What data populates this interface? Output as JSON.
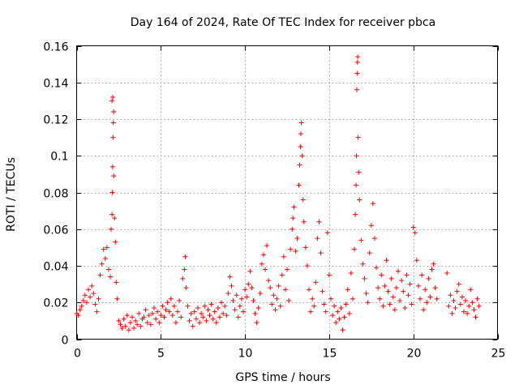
{
  "chart_data": {
    "type": "scatter",
    "title": "Day 164 of 2024, Rate Of TEC Index for receiver pbca",
    "xlabel": "GPS time / hours",
    "ylabel": "ROTI / TECUs",
    "xlim": [
      0,
      25
    ],
    "ylim": [
      0,
      0.16
    ],
    "x_ticks": [
      "0",
      "5",
      "10",
      "15",
      "20",
      "25"
    ],
    "y_ticks": [
      "0",
      "0.02",
      "0.04",
      "0.06",
      "0.08",
      "0.1",
      "0.12",
      "0.14",
      "0.16"
    ],
    "x_tick_values": [
      0,
      5,
      10,
      15,
      20,
      25
    ],
    "y_tick_values": [
      0,
      0.02,
      0.04,
      0.06,
      0.08,
      0.1,
      0.12,
      0.14,
      0.16
    ],
    "grid": true,
    "marker": "+",
    "color": "#ff0000",
    "series": [
      {
        "name": "ROTI",
        "points": [
          [
            0.0,
            0.014
          ],
          [
            0.1,
            0.013
          ],
          [
            0.2,
            0.016
          ],
          [
            0.3,
            0.018
          ],
          [
            0.4,
            0.021
          ],
          [
            0.5,
            0.024
          ],
          [
            0.6,
            0.02
          ],
          [
            0.7,
            0.027
          ],
          [
            0.8,
            0.023
          ],
          [
            0.9,
            0.029
          ],
          [
            1.0,
            0.025
          ],
          [
            1.1,
            0.019
          ],
          [
            1.2,
            0.015
          ],
          [
            1.3,
            0.022
          ],
          [
            1.4,
            0.035
          ],
          [
            1.5,
            0.041
          ],
          [
            1.6,
            0.049
          ],
          [
            1.7,
            0.044
          ],
          [
            1.8,
            0.05
          ],
          [
            1.9,
            0.038
          ],
          [
            2.0,
            0.034
          ],
          [
            2.05,
            0.06
          ],
          [
            2.1,
            0.068
          ],
          [
            2.12,
            0.08
          ],
          [
            2.14,
            0.094
          ],
          [
            2.16,
            0.11
          ],
          [
            2.18,
            0.118
          ],
          [
            2.2,
            0.124
          ],
          [
            2.1,
            0.13
          ],
          [
            2.15,
            0.132
          ],
          [
            2.2,
            0.089
          ],
          [
            2.25,
            0.066
          ],
          [
            2.3,
            0.053
          ],
          [
            2.35,
            0.031
          ],
          [
            2.4,
            0.022
          ],
          [
            2.5,
            0.01
          ],
          [
            2.6,
            0.008
          ],
          [
            2.7,
            0.006
          ],
          [
            2.8,
            0.011
          ],
          [
            2.9,
            0.007
          ],
          [
            3.0,
            0.013
          ],
          [
            3.1,
            0.005
          ],
          [
            3.2,
            0.009
          ],
          [
            3.3,
            0.012
          ],
          [
            3.4,
            0.006
          ],
          [
            3.5,
            0.01
          ],
          [
            3.6,
            0.008
          ],
          [
            3.7,
            0.014
          ],
          [
            3.8,
            0.007
          ],
          [
            3.9,
            0.011
          ],
          [
            4.0,
            0.012
          ],
          [
            4.1,
            0.016
          ],
          [
            4.2,
            0.009
          ],
          [
            4.3,
            0.013
          ],
          [
            4.4,
            0.008
          ],
          [
            4.5,
            0.014
          ],
          [
            4.6,
            0.017
          ],
          [
            4.7,
            0.011
          ],
          [
            4.8,
            0.015
          ],
          [
            4.9,
            0.009
          ],
          [
            5.0,
            0.013
          ],
          [
            5.1,
            0.018
          ],
          [
            5.2,
            0.012
          ],
          [
            5.3,
            0.016
          ],
          [
            5.4,
            0.02
          ],
          [
            5.5,
            0.015
          ],
          [
            5.6,
            0.022
          ],
          [
            5.7,
            0.013
          ],
          [
            5.8,
            0.018
          ],
          [
            5.9,
            0.009
          ],
          [
            6.0,
            0.015
          ],
          [
            6.1,
            0.021
          ],
          [
            6.2,
            0.012
          ],
          [
            6.3,
            0.033
          ],
          [
            6.4,
            0.038
          ],
          [
            6.45,
            0.045
          ],
          [
            6.5,
            0.028
          ],
          [
            6.6,
            0.018
          ],
          [
            6.7,
            0.01
          ],
          [
            6.8,
            0.014
          ],
          [
            6.9,
            0.007
          ],
          [
            7.0,
            0.015
          ],
          [
            7.1,
            0.011
          ],
          [
            7.2,
            0.017
          ],
          [
            7.3,
            0.009
          ],
          [
            7.4,
            0.014
          ],
          [
            7.5,
            0.012
          ],
          [
            7.6,
            0.018
          ],
          [
            7.7,
            0.01
          ],
          [
            7.8,
            0.016
          ],
          [
            7.9,
            0.013
          ],
          [
            8.0,
            0.019
          ],
          [
            8.1,
            0.011
          ],
          [
            8.2,
            0.015
          ],
          [
            8.3,
            0.009
          ],
          [
            8.4,
            0.017
          ],
          [
            8.5,
            0.012
          ],
          [
            8.6,
            0.02
          ],
          [
            8.7,
            0.014
          ],
          [
            8.8,
            0.018
          ],
          [
            8.9,
            0.013
          ],
          [
            9.0,
            0.025
          ],
          [
            9.1,
            0.034
          ],
          [
            9.2,
            0.029
          ],
          [
            9.3,
            0.021
          ],
          [
            9.4,
            0.016
          ],
          [
            9.5,
            0.024
          ],
          [
            9.6,
            0.012
          ],
          [
            9.7,
            0.018
          ],
          [
            9.8,
            0.022
          ],
          [
            9.9,
            0.015
          ],
          [
            10.0,
            0.027
          ],
          [
            10.1,
            0.023
          ],
          [
            10.2,
            0.03
          ],
          [
            10.3,
            0.037
          ],
          [
            10.4,
            0.028
          ],
          [
            10.5,
            0.021
          ],
          [
            10.6,
            0.014
          ],
          [
            10.7,
            0.009
          ],
          [
            10.8,
            0.017
          ],
          [
            10.9,
            0.025
          ],
          [
            11.0,
            0.041
          ],
          [
            11.1,
            0.046
          ],
          [
            11.2,
            0.038
          ],
          [
            11.3,
            0.051
          ],
          [
            11.4,
            0.032
          ],
          [
            11.5,
            0.028
          ],
          [
            11.6,
            0.019
          ],
          [
            11.7,
            0.024
          ],
          [
            11.8,
            0.016
          ],
          [
            11.9,
            0.022
          ],
          [
            12.0,
            0.029
          ],
          [
            12.1,
            0.018
          ],
          [
            12.2,
            0.035
          ],
          [
            12.3,
            0.045
          ],
          [
            12.4,
            0.027
          ],
          [
            12.5,
            0.038
          ],
          [
            12.6,
            0.021
          ],
          [
            12.7,
            0.049
          ],
          [
            12.8,
            0.06
          ],
          [
            12.85,
            0.066
          ],
          [
            12.9,
            0.072
          ],
          [
            13.0,
            0.048
          ],
          [
            13.1,
            0.055
          ],
          [
            13.2,
            0.084
          ],
          [
            13.25,
            0.095
          ],
          [
            13.3,
            0.105
          ],
          [
            13.32,
            0.112
          ],
          [
            13.35,
            0.118
          ],
          [
            13.4,
            0.1
          ],
          [
            13.45,
            0.076
          ],
          [
            13.5,
            0.064
          ],
          [
            13.6,
            0.05
          ],
          [
            13.7,
            0.04
          ],
          [
            13.8,
            0.027
          ],
          [
            13.9,
            0.015
          ],
          [
            14.0,
            0.022
          ],
          [
            14.1,
            0.018
          ],
          [
            14.2,
            0.031
          ],
          [
            14.3,
            0.055
          ],
          [
            14.4,
            0.064
          ],
          [
            14.5,
            0.047
          ],
          [
            14.6,
            0.026
          ],
          [
            14.7,
            0.019
          ],
          [
            14.8,
            0.015
          ],
          [
            14.9,
            0.058
          ],
          [
            15.0,
            0.035
          ],
          [
            15.1,
            0.022
          ],
          [
            15.2,
            0.013
          ],
          [
            15.3,
            0.018
          ],
          [
            15.4,
            0.009
          ],
          [
            15.5,
            0.015
          ],
          [
            15.6,
            0.011
          ],
          [
            15.7,
            0.017
          ],
          [
            15.8,
            0.005
          ],
          [
            15.9,
            0.012
          ],
          [
            16.0,
            0.019
          ],
          [
            16.1,
            0.027
          ],
          [
            16.2,
            0.014
          ],
          [
            16.3,
            0.036
          ],
          [
            16.4,
            0.022
          ],
          [
            16.5,
            0.049
          ],
          [
            16.55,
            0.068
          ],
          [
            16.6,
            0.084
          ],
          [
            16.62,
            0.1
          ],
          [
            16.64,
            0.136
          ],
          [
            16.66,
            0.145
          ],
          [
            16.68,
            0.151
          ],
          [
            16.7,
            0.154
          ],
          [
            16.72,
            0.11
          ],
          [
            16.75,
            0.091
          ],
          [
            16.8,
            0.076
          ],
          [
            16.9,
            0.054
          ],
          [
            17.0,
            0.041
          ],
          [
            17.1,
            0.033
          ],
          [
            17.2,
            0.025
          ],
          [
            17.3,
            0.02
          ],
          [
            17.4,
            0.047
          ],
          [
            17.5,
            0.062
          ],
          [
            17.6,
            0.074
          ],
          [
            17.7,
            0.055
          ],
          [
            17.8,
            0.039
          ],
          [
            17.9,
            0.028
          ],
          [
            18.0,
            0.022
          ],
          [
            18.1,
            0.035
          ],
          [
            18.2,
            0.018
          ],
          [
            18.3,
            0.029
          ],
          [
            18.4,
            0.043
          ],
          [
            18.5,
            0.026
          ],
          [
            18.6,
            0.019
          ],
          [
            18.7,
            0.033
          ],
          [
            18.8,
            0.023
          ],
          [
            18.9,
            0.016
          ],
          [
            19.0,
            0.028
          ],
          [
            19.1,
            0.037
          ],
          [
            19.2,
            0.021
          ],
          [
            19.3,
            0.032
          ],
          [
            19.4,
            0.026
          ],
          [
            19.5,
            0.017
          ],
          [
            19.6,
            0.035
          ],
          [
            19.7,
            0.024
          ],
          [
            19.8,
            0.03
          ],
          [
            19.9,
            0.019
          ],
          [
            20.0,
            0.061
          ],
          [
            20.1,
            0.058
          ],
          [
            20.2,
            0.043
          ],
          [
            20.3,
            0.029
          ],
          [
            20.4,
            0.022
          ],
          [
            20.5,
            0.035
          ],
          [
            20.6,
            0.016
          ],
          [
            20.7,
            0.027
          ],
          [
            20.8,
            0.02
          ],
          [
            20.9,
            0.033
          ],
          [
            21.0,
            0.023
          ],
          [
            21.1,
            0.038
          ],
          [
            21.2,
            0.041
          ],
          [
            21.3,
            0.028
          ],
          [
            21.4,
            0.022
          ],
          [
            22.0,
            0.036
          ],
          [
            22.1,
            0.018
          ],
          [
            22.2,
            0.024
          ],
          [
            22.3,
            0.014
          ],
          [
            22.4,
            0.021
          ],
          [
            22.5,
            0.017
          ],
          [
            22.6,
            0.026
          ],
          [
            22.7,
            0.03
          ],
          [
            22.8,
            0.019
          ],
          [
            22.9,
            0.023
          ],
          [
            23.0,
            0.015
          ],
          [
            23.1,
            0.021
          ],
          [
            23.2,
            0.014
          ],
          [
            23.3,
            0.018
          ],
          [
            23.4,
            0.027
          ],
          [
            23.5,
            0.02
          ],
          [
            23.6,
            0.016
          ],
          [
            23.7,
            0.012
          ],
          [
            23.8,
            0.022
          ],
          [
            23.9,
            0.018
          ]
        ]
      }
    ]
  }
}
